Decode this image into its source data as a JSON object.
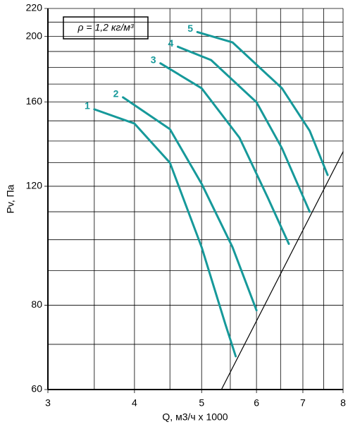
{
  "chart_data": {
    "type": "line",
    "xlabel": "Q, м3/ч x 1000",
    "ylabel": "Pv, Па",
    "annotation": "ρ = 1,2 кг/м³",
    "log_x": true,
    "log_y": true,
    "grid": true,
    "xlim": [
      3,
      8
    ],
    "ylim": [
      60,
      220
    ],
    "xticks": [
      3,
      4,
      5,
      6,
      7,
      8
    ],
    "yticks": [
      60,
      80,
      120,
      160,
      200,
      220
    ],
    "x_gridlines": [
      3.5,
      4.5,
      5.5,
      6.5,
      7.5
    ],
    "y_gridlines": [
      70,
      90,
      100,
      110,
      130,
      140,
      150,
      170,
      180,
      190,
      210
    ],
    "series": [
      {
        "name": "1",
        "color": "#16999a",
        "x": [
          3.5,
          4,
          4.5,
          5,
          5.41,
          5.6
        ],
        "values": [
          156,
          148.6,
          130,
          97.5,
          75,
          67.2
        ]
      },
      {
        "name": "2",
        "color": "#16999a",
        "x": [
          3.85,
          4.5,
          5,
          5.54,
          6
        ],
        "values": [
          162.5,
          145.8,
          121,
          97.5,
          78.6
        ]
      },
      {
        "name": "3",
        "color": "#16999a",
        "x": [
          4.36,
          5,
          5.67,
          6.23,
          6.68
        ],
        "values": [
          182.5,
          167.6,
          141.6,
          115.4,
          98.6
        ]
      },
      {
        "name": "4",
        "color": "#16999a",
        "x": [
          4.62,
          5.16,
          6,
          6.53,
          7.16
        ],
        "values": [
          193.1,
          184.5,
          159.8,
          136.6,
          110
        ]
      },
      {
        "name": "5",
        "color": "#16999a",
        "x": [
          4.93,
          5.54,
          6.53,
          7.16,
          7.6
        ],
        "values": [
          203,
          196,
          167.6,
          145,
          124.7
        ]
      }
    ],
    "system_line": {
      "color": "#000000",
      "x": [
        5.34,
        8
      ],
      "values": [
        60,
        135
      ]
    }
  }
}
